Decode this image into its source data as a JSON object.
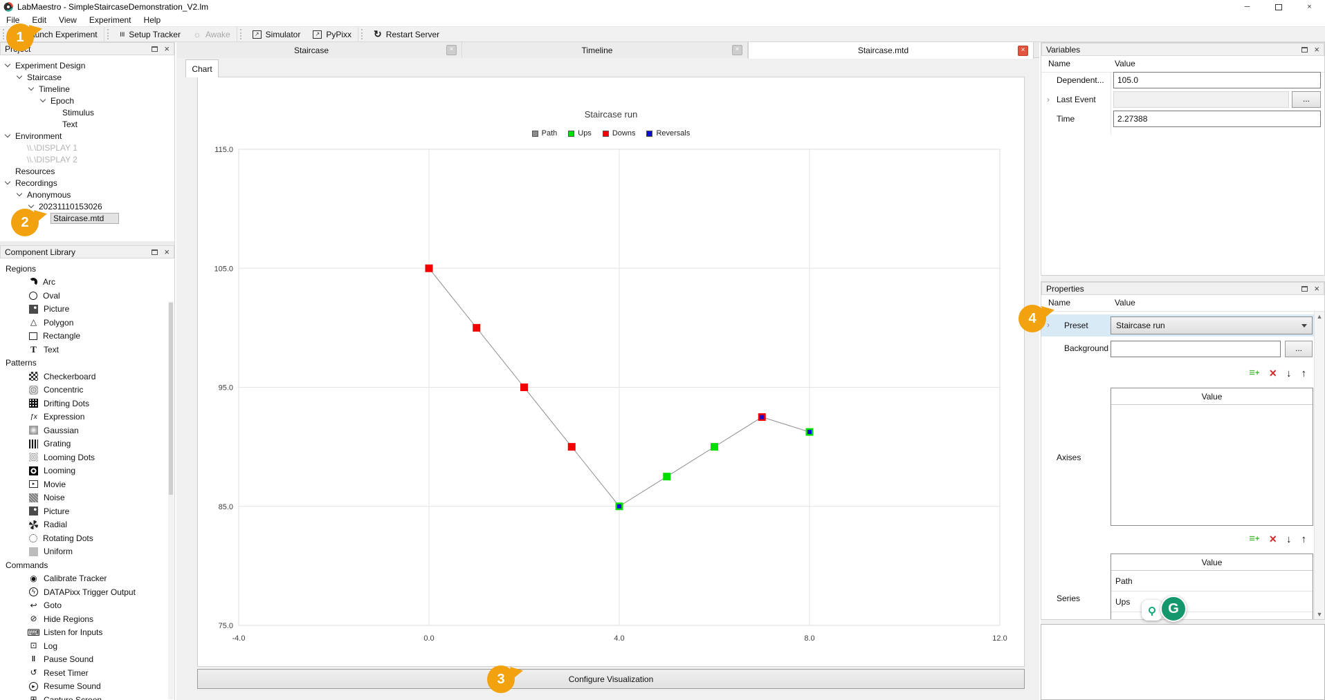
{
  "window": {
    "title": "LabMaestro - SimpleStaircaseDemonstration_V2.lm"
  },
  "menu": {
    "items": [
      "File",
      "Edit",
      "View",
      "Experiment",
      "Help"
    ]
  },
  "toolbar": {
    "buttons": [
      {
        "label": "Launch Experiment",
        "icon": "play-icon",
        "disabled": false,
        "group_start": true
      },
      {
        "label": "Setup Tracker",
        "icon": "sliders-icon",
        "disabled": false,
        "group_start": true
      },
      {
        "label": "Awake",
        "icon": "sun-icon",
        "disabled": true,
        "group_start": false
      },
      {
        "label": "Simulator",
        "icon": "external-window-icon",
        "disabled": false,
        "group_start": true
      },
      {
        "label": "PyPixx",
        "icon": "external-window-icon",
        "disabled": false,
        "group_start": false
      },
      {
        "label": "Restart Server",
        "icon": "restart-icon",
        "disabled": false,
        "group_start": true
      }
    ]
  },
  "project": {
    "title": "Project",
    "items": [
      {
        "label": "Experiment Design",
        "depth": 0,
        "expand": true
      },
      {
        "label": "Staircase",
        "depth": 1,
        "expand": true
      },
      {
        "label": "Timeline",
        "depth": 2,
        "expand": true
      },
      {
        "label": "Epoch",
        "depth": 3,
        "expand": true
      },
      {
        "label": "Stimulus",
        "depth": 4,
        "expand": false
      },
      {
        "label": "Text",
        "depth": 4,
        "expand": false
      },
      {
        "label": "Environment",
        "depth": 0,
        "expand": true
      },
      {
        "label": "\\\\.\\DISPLAY 1",
        "depth": 1,
        "expand": false,
        "dim": true
      },
      {
        "label": "\\\\.\\DISPLAY 2",
        "depth": 1,
        "expand": false,
        "dim": true
      },
      {
        "label": "Resources",
        "depth": 0,
        "expand": false
      },
      {
        "label": "Recordings",
        "depth": 0,
        "expand": true
      },
      {
        "label": "Anonymous",
        "depth": 1,
        "expand": true
      },
      {
        "label": "20231110153026",
        "depth": 2,
        "expand": true
      },
      {
        "label": "Staircase.mtd",
        "depth": 3,
        "expand": false,
        "selected": true
      }
    ]
  },
  "library": {
    "title": "Component Library",
    "sections": [
      {
        "label": "Regions",
        "items": [
          {
            "label": "Arc",
            "icon": "arc-icon"
          },
          {
            "label": "Oval",
            "icon": "oval-icon"
          },
          {
            "label": "Picture",
            "icon": "picture-icon"
          },
          {
            "label": "Polygon",
            "icon": "polygon-icon"
          },
          {
            "label": "Rectangle",
            "icon": "rectangle-icon"
          },
          {
            "label": "Text",
            "icon": "text-icon"
          }
        ]
      },
      {
        "label": "Patterns",
        "items": [
          {
            "label": "Checkerboard",
            "icon": "checkerboard-icon"
          },
          {
            "label": "Concentric",
            "icon": "concentric-icon"
          },
          {
            "label": "Drifting Dots",
            "icon": "drifting-dots-icon"
          },
          {
            "label": "Expression",
            "icon": "expression-icon"
          },
          {
            "label": "Gaussian",
            "icon": "gaussian-icon"
          },
          {
            "label": "Grating",
            "icon": "grating-icon"
          },
          {
            "label": "Looming Dots",
            "icon": "looming-dots-icon"
          },
          {
            "label": "Looming",
            "icon": "looming-icon"
          },
          {
            "label": "Movie",
            "icon": "movie-icon"
          },
          {
            "label": "Noise",
            "icon": "noise-icon"
          },
          {
            "label": "Picture",
            "icon": "picture2-icon"
          },
          {
            "label": "Radial",
            "icon": "radial-icon"
          },
          {
            "label": "Rotating Dots",
            "icon": "rotating-dots-icon"
          },
          {
            "label": "Uniform",
            "icon": "uniform-icon"
          }
        ]
      },
      {
        "label": "Commands",
        "items": [
          {
            "label": "Calibrate Tracker",
            "icon": "calibrate-icon"
          },
          {
            "label": "DATAPixx Trigger Output",
            "icon": "datapixx-icon"
          },
          {
            "label": "Goto",
            "icon": "goto-icon"
          },
          {
            "label": "Hide Regions",
            "icon": "hide-icon"
          },
          {
            "label": "Listen for Inputs",
            "icon": "listen-icon"
          },
          {
            "label": "Log",
            "icon": "log-icon"
          },
          {
            "label": "Pause Sound",
            "icon": "pause-icon"
          },
          {
            "label": "Reset Timer",
            "icon": "reset-timer-icon"
          },
          {
            "label": "Resume Sound",
            "icon": "resume-icon"
          },
          {
            "label": "Capture Screen",
            "icon": "capture-icon"
          }
        ]
      }
    ]
  },
  "doc_tabs": [
    {
      "label": "Staircase",
      "active": false
    },
    {
      "label": "Timeline",
      "active": false
    },
    {
      "label": "Staircase.mtd",
      "active": true
    }
  ],
  "chart_pane": {
    "tab": "Chart",
    "configure_button": "Configure Visualization"
  },
  "chart_data": {
    "type": "line",
    "title": "Staircase run",
    "grid": true,
    "legend_position": "top",
    "xlim": [
      -4,
      12
    ],
    "ylim": [
      75,
      115
    ],
    "xticks": [
      -4,
      0,
      4,
      8,
      12
    ],
    "xtick_labels": [
      "-4.0",
      "0.0",
      "4.0",
      "8.0",
      "12.0"
    ],
    "yticks": [
      75,
      85,
      95,
      105,
      115
    ],
    "ytick_labels": [
      "75.0",
      "85.0",
      "95.0",
      "105.0",
      "115.0"
    ],
    "series": [
      {
        "name": "Path",
        "type": "line",
        "color": "#8c8c8c",
        "points": [
          [
            0,
            105
          ],
          [
            1,
            100
          ],
          [
            2,
            95
          ],
          [
            3,
            90
          ],
          [
            4,
            85
          ],
          [
            5,
            87.5
          ],
          [
            6,
            90
          ],
          [
            7,
            92.5
          ],
          [
            8,
            91.25
          ]
        ]
      },
      {
        "name": "Ups",
        "type": "marker",
        "color": "#00dd00",
        "points": [
          [
            4,
            85
          ],
          [
            5,
            87.5
          ],
          [
            6,
            90
          ],
          [
            8,
            91.25
          ]
        ]
      },
      {
        "name": "Downs",
        "type": "marker",
        "color": "#f40000",
        "points": [
          [
            0,
            105
          ],
          [
            1,
            100
          ],
          [
            2,
            95
          ],
          [
            3,
            90
          ],
          [
            7,
            92.5
          ]
        ]
      },
      {
        "name": "Reversals",
        "type": "marker_small",
        "color": "#0d0dd6",
        "points": [
          [
            4,
            85
          ],
          [
            7,
            92.5
          ],
          [
            8,
            91.25
          ]
        ]
      }
    ]
  },
  "variables": {
    "title": "Variables",
    "columns": [
      "Name",
      "Value"
    ],
    "rows": [
      {
        "name": "Dependent...",
        "value": "105.0"
      },
      {
        "name": "Last Event",
        "value": "",
        "button": "..."
      },
      {
        "name": "Time",
        "value": "2.27388"
      }
    ]
  },
  "properties": {
    "title": "Properties",
    "columns": [
      "Name",
      "Value"
    ],
    "preset": {
      "name": "Preset",
      "value": "Staircase run"
    },
    "background": {
      "name": "Background",
      "value": "",
      "button": "..."
    },
    "axises": {
      "name": "Axises",
      "column_header": "Value",
      "rows": []
    },
    "series": {
      "name": "Series",
      "column_header": "Value",
      "rows": [
        "Path",
        "Ups"
      ]
    }
  },
  "badges": [
    {
      "label": "1"
    },
    {
      "label": "2"
    },
    {
      "label": "3"
    },
    {
      "label": "4"
    }
  ],
  "colors": {
    "accent_orange": "#f2a20e",
    "active_tab_close_red": "#e2543f",
    "preset_row_highlight": "#d9eaf7",
    "ups_green": "#00dd00",
    "downs_red": "#f40000",
    "reversals_blue": "#0d0dd6",
    "path_gray": "#8c8c8c",
    "grammarly_teal": "#14976d",
    "launch_play_green": "#2ca52c"
  }
}
